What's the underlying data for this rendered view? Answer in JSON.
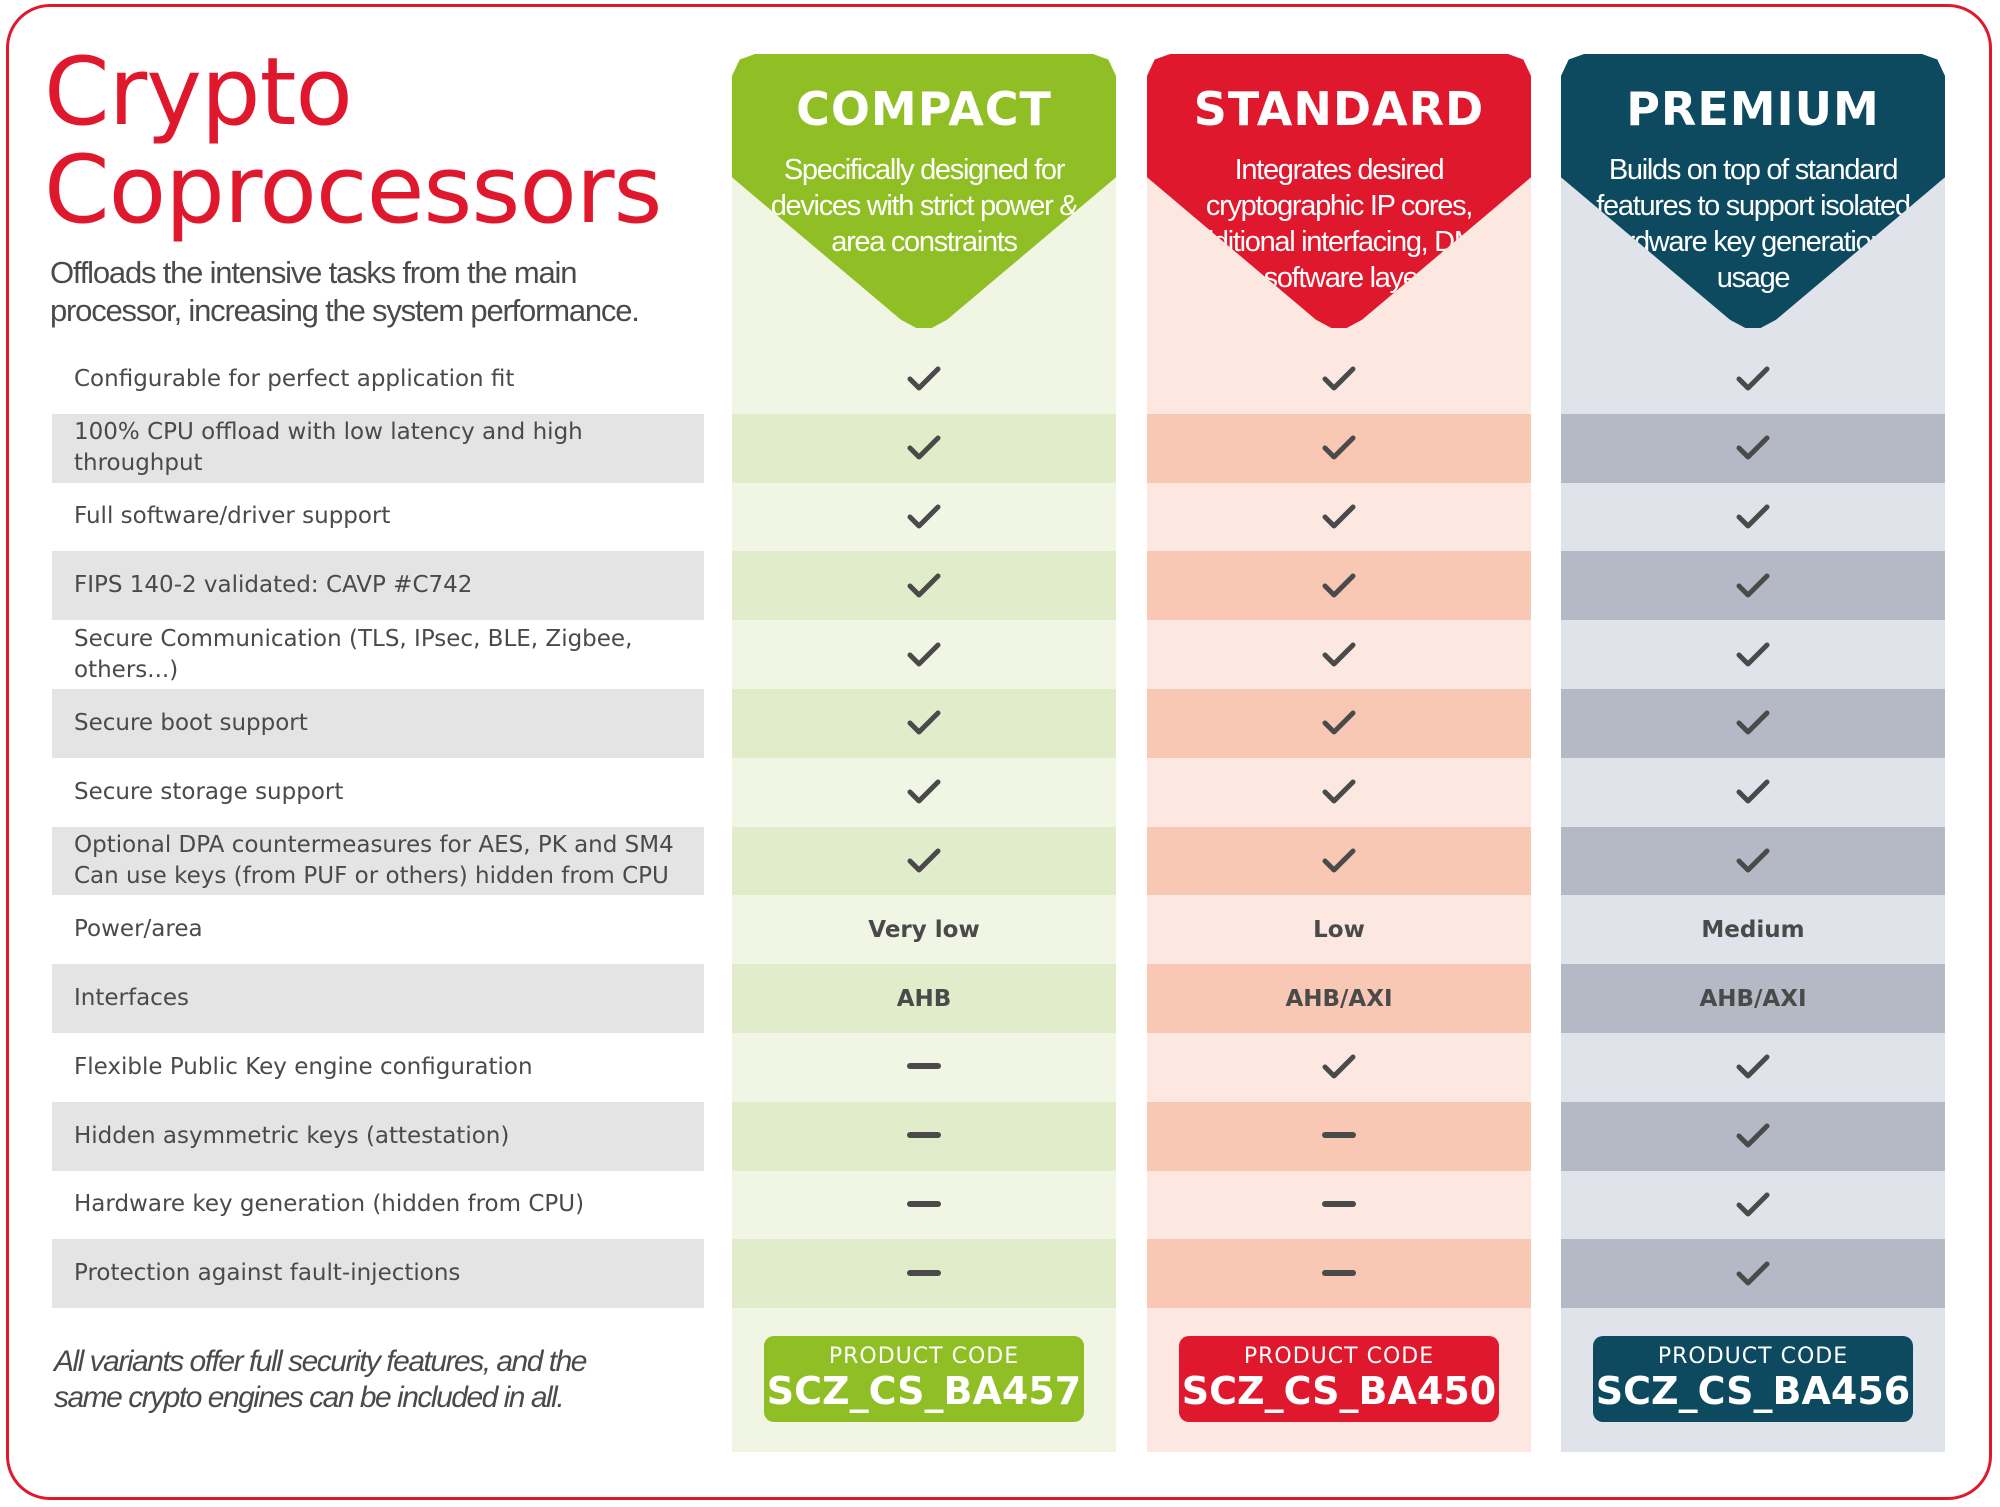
{
  "title": {
    "line1": "Crypto",
    "line2": "Coprocessors"
  },
  "subtitle": "Offloads the intensive tasks from the main processor, increasing the system performance.",
  "colors": {
    "brand_red": "#e0182d",
    "compact_accent": "#8fbf24",
    "standard_accent": "#e0182d",
    "premium_accent": "#0d4a60"
  },
  "columns": [
    {
      "key": "compact",
      "name": "COMPACT",
      "description": "Specifically designed for devices with strict power & area constraints",
      "product_code_label": "PRODUCT CODE",
      "product_code": "SCZ_CS_BA457"
    },
    {
      "key": "standard",
      "name": "STANDARD",
      "description": "Integrates desired cryptographic IP cores, additional interfacing, DMA & software layers",
      "product_code_label": "PRODUCT CODE",
      "product_code": "SCZ_CS_BA450"
    },
    {
      "key": "premium",
      "name": "PREMIUM",
      "description": "Builds on top of standard features to support isolated hardware key generation & usage",
      "product_code_label": "PRODUCT CODE",
      "product_code": "SCZ_CS_BA456"
    }
  ],
  "features": [
    {
      "label": "Configurable for perfect application fit",
      "values": [
        "check",
        "check",
        "check"
      ]
    },
    {
      "label": "100% CPU offload with low latency and high throughput",
      "values": [
        "check",
        "check",
        "check"
      ]
    },
    {
      "label": "Full software/driver support",
      "values": [
        "check",
        "check",
        "check"
      ]
    },
    {
      "label": "FIPS 140-2 validated: CAVP #C742",
      "values": [
        "check",
        "check",
        "check"
      ]
    },
    {
      "label": "Secure Communication (TLS, IPsec, BLE, Zigbee, others...)",
      "values": [
        "check",
        "check",
        "check"
      ]
    },
    {
      "label": "Secure boot support",
      "values": [
        "check",
        "check",
        "check"
      ]
    },
    {
      "label": "Secure storage support",
      "values": [
        "check",
        "check",
        "check"
      ]
    },
    {
      "label": "Optional DPA countermeasures for AES, PK and SM4\nCan use keys (from PUF or others) hidden from CPU",
      "values": [
        "check",
        "check",
        "check"
      ]
    },
    {
      "label": "Power/area",
      "values": [
        "Very low",
        "Low",
        "Medium"
      ]
    },
    {
      "label": "Interfaces",
      "values": [
        "AHB",
        "AHB/AXI",
        "AHB/AXI"
      ]
    },
    {
      "label": "Flexible Public Key engine configuration",
      "values": [
        "dash",
        "check",
        "check"
      ]
    },
    {
      "label": "Hidden asymmetric keys (attestation)",
      "values": [
        "dash",
        "dash",
        "check"
      ]
    },
    {
      "label": "Hardware key generation (hidden from CPU)",
      "values": [
        "dash",
        "dash",
        "check"
      ]
    },
    {
      "label": "Protection against fault-injections",
      "values": [
        "dash",
        "dash",
        "check"
      ]
    }
  ],
  "footnote": "All variants offer full security features, and the same crypto engines can be included in all."
}
